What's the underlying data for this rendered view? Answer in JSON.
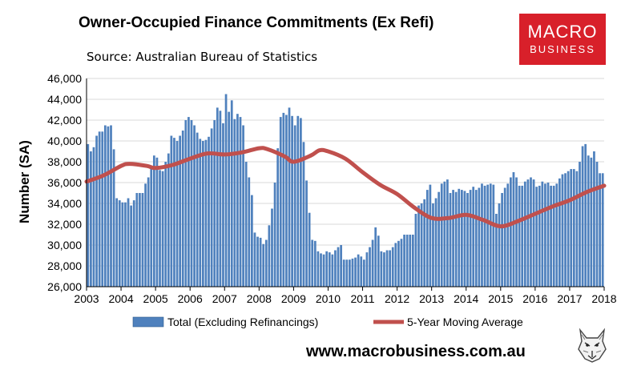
{
  "title": "Owner-Occupied Finance Commitments (Ex Refi)",
  "source": "Source: Australian  Bureau of Statistics",
  "logo": {
    "line1": "MACRO",
    "line2": "BUSINESS",
    "color": "#d8202a"
  },
  "website": "www.macrobusiness.com.au",
  "chart_data": {
    "type": "bar",
    "ylabel": "Number (SA)",
    "ylim": [
      26000,
      46000
    ],
    "yticks": [
      "26,000",
      "28,000",
      "30,000",
      "32,000",
      "34,000",
      "36,000",
      "38,000",
      "40,000",
      "42,000",
      "44,000",
      "46,000"
    ],
    "xticks": [
      "2003",
      "2004",
      "2005",
      "2006",
      "2007",
      "2008",
      "2009",
      "2010",
      "2011",
      "2012",
      "2013",
      "2014",
      "2015",
      "2016",
      "2017",
      "2018"
    ],
    "x_start": "2003-01",
    "x_end": "2018-01",
    "grid": true,
    "legend_position": "bottom",
    "series": [
      {
        "name": "Total (Excluding Refinancings)",
        "kind": "bar",
        "color": "#4f81bd",
        "values": [
          39700,
          39000,
          39400,
          40500,
          40900,
          40900,
          41500,
          41400,
          41500,
          39200,
          34500,
          34300,
          34100,
          34100,
          34500,
          33800,
          34300,
          35000,
          35000,
          35000,
          35900,
          36500,
          37500,
          38600,
          38400,
          37200,
          37100,
          38000,
          38800,
          40500,
          40300,
          40000,
          40500,
          41000,
          42000,
          42300,
          42000,
          41500,
          40800,
          40200,
          40000,
          40100,
          40400,
          41200,
          42000,
          43200,
          42900,
          41700,
          44500,
          42800,
          43900,
          42100,
          42600,
          42300,
          41500,
          38000,
          36500,
          34800,
          31200,
          30800,
          30700,
          30100,
          30500,
          31900,
          33500,
          36000,
          39300,
          42300,
          42700,
          42500,
          43200,
          42400,
          41500,
          42400,
          42200,
          39900,
          36200,
          33100,
          30500,
          30400,
          29400,
          29200,
          29100,
          29400,
          29300,
          29100,
          29500,
          29800,
          30000,
          28600,
          28600,
          28600,
          28700,
          28800,
          29100,
          28900,
          28600,
          29300,
          29800,
          30500,
          31700,
          30900,
          29400,
          29300,
          29500,
          29500,
          29800,
          30200,
          30400,
          30600,
          31000,
          31000,
          31000,
          31000,
          33000,
          33800,
          34000,
          34400,
          35300,
          35800,
          34000,
          34500,
          35100,
          35900,
          36100,
          36300,
          35000,
          35300,
          35100,
          35400,
          35300,
          35200,
          35000,
          35300,
          35600,
          35300,
          35500,
          35900,
          35700,
          35800,
          35900,
          35800,
          33000,
          34000,
          35000,
          35500,
          35900,
          36500,
          37000,
          36500,
          35700,
          35700,
          36100,
          36300,
          36500,
          36300,
          35600,
          35700,
          36100,
          35900,
          36000,
          35700,
          35700,
          35900,
          36400,
          36800,
          36900,
          37100,
          37300,
          37300,
          37100,
          38000,
          39500,
          39700,
          38600,
          38400,
          39000,
          38000,
          36900,
          36900
        ]
      },
      {
        "name": "5-Year Moving Average",
        "kind": "line",
        "color": "#c0504d",
        "points": [
          [
            "2003-01",
            36100
          ],
          [
            "2003-07",
            36700
          ],
          [
            "2004-01",
            37600
          ],
          [
            "2004-04",
            37800
          ],
          [
            "2004-10",
            37600
          ],
          [
            "2005-01",
            37400
          ],
          [
            "2005-07",
            37700
          ],
          [
            "2006-01",
            38300
          ],
          [
            "2006-07",
            38800
          ],
          [
            "2007-01",
            38700
          ],
          [
            "2007-07",
            38900
          ],
          [
            "2008-01",
            39300
          ],
          [
            "2008-04",
            39200
          ],
          [
            "2008-10",
            38500
          ],
          [
            "2009-01",
            38000
          ],
          [
            "2009-07",
            38600
          ],
          [
            "2009-10",
            39100
          ],
          [
            "2010-01",
            39000
          ],
          [
            "2010-07",
            38300
          ],
          [
            "2011-01",
            37000
          ],
          [
            "2011-07",
            35800
          ],
          [
            "2012-01",
            34900
          ],
          [
            "2012-07",
            33600
          ],
          [
            "2013-01",
            32600
          ],
          [
            "2013-07",
            32600
          ],
          [
            "2014-01",
            32900
          ],
          [
            "2014-07",
            32400
          ],
          [
            "2015-01",
            31800
          ],
          [
            "2015-07",
            32300
          ],
          [
            "2016-01",
            33000
          ],
          [
            "2016-07",
            33700
          ],
          [
            "2017-01",
            34300
          ],
          [
            "2017-07",
            35100
          ],
          [
            "2018-01",
            35700
          ]
        ]
      }
    ]
  }
}
